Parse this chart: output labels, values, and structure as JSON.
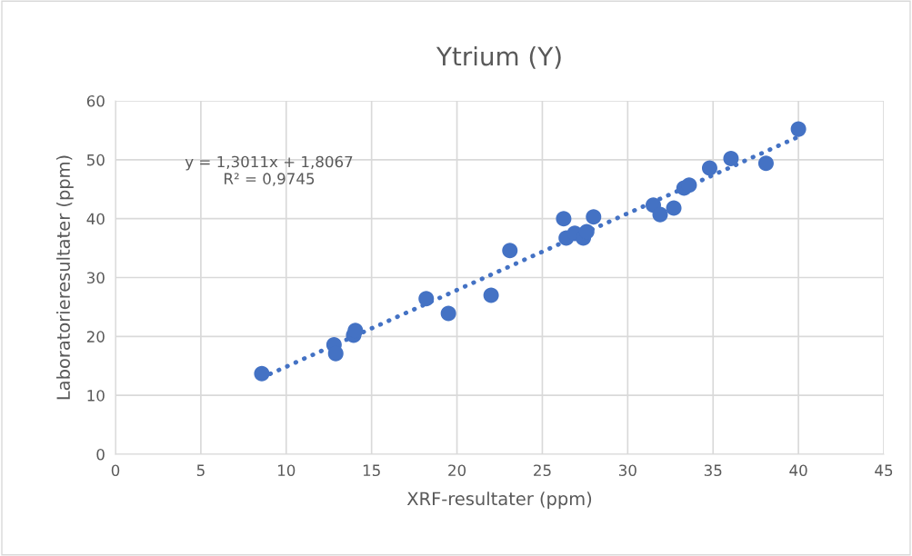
{
  "chart_data": {
    "type": "scatter",
    "title": "Ytrium (Y)",
    "xlabel": "XRF-resultater (ppm)",
    "ylabel": "Laboratorieresultater (ppm)",
    "xlim": [
      0,
      45
    ],
    "xticks": [
      0,
      5,
      10,
      15,
      20,
      25,
      30,
      35,
      40,
      45
    ],
    "ylim": [
      0,
      60
    ],
    "yticks": [
      0,
      10,
      20,
      30,
      40,
      50,
      60
    ],
    "grid": true,
    "series": [
      {
        "marker": "circle",
        "color": "#4472c4",
        "x": [
          8.57,
          12.8,
          12.9,
          13.95,
          14.05,
          18.2,
          19.5,
          22.0,
          23.1,
          26.25,
          26.4,
          26.9,
          27.4,
          27.6,
          28.0,
          31.5,
          31.9,
          32.7,
          33.3,
          33.6,
          34.8,
          36.05,
          38.1,
          40.0
        ],
        "values": [
          13.7,
          18.6,
          17.1,
          20.2,
          21.0,
          26.4,
          23.9,
          27.0,
          34.6,
          40.0,
          36.7,
          37.5,
          36.7,
          37.8,
          40.3,
          42.3,
          40.7,
          41.8,
          45.2,
          45.7,
          48.6,
          50.2,
          49.4,
          55.2
        ]
      },
      {
        "type": "line",
        "color": "#4472c4",
        "line_style": "dotted",
        "x": [
          8.57,
          40.0
        ],
        "values": [
          13.0,
          53.9
        ]
      }
    ],
    "annotations": [
      "y = 1,3011x + 1,8067\nR² = 0,9745"
    ]
  }
}
